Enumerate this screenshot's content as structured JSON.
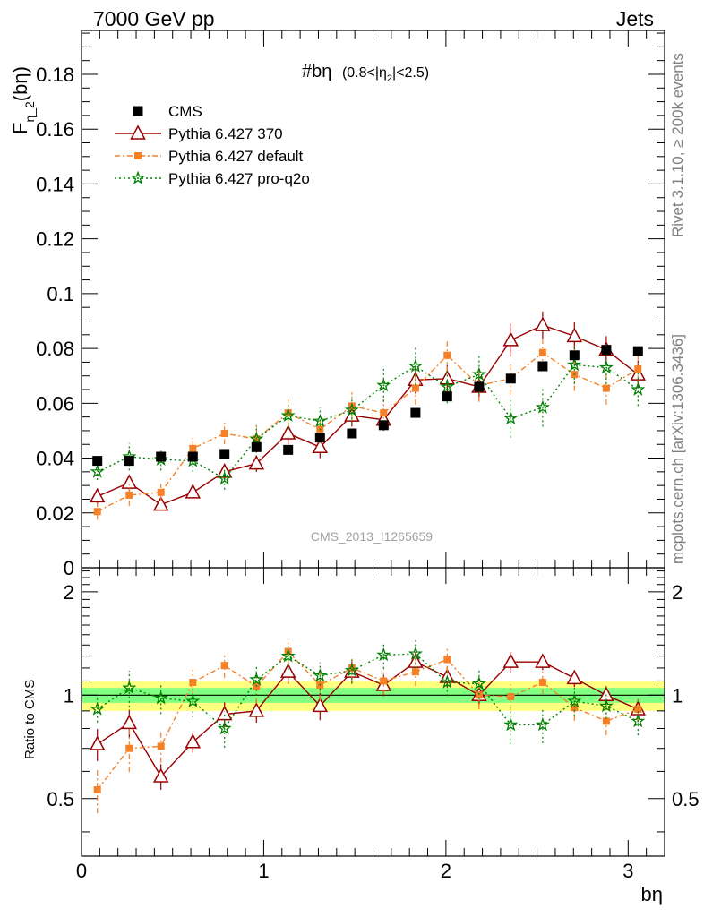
{
  "header": {
    "left": "7000 GeV pp",
    "right": "Jets"
  },
  "side_text": {
    "rivet": "Rivet 3.1.10, ≥ 200k events",
    "mcplots": "mcplots.cern.ch [arXiv:1306.3436]"
  },
  "watermark": "CMS_2013_I1265659",
  "top_panel": {
    "title_main": "#bη",
    "title_sub": "(0.8<|η",
    "title_sub2": "2",
    "title_sub3": "|<2.5)",
    "ylabel_main": "F",
    "ylabel_sub": "η_2",
    "ylabel_tail": "(bη)"
  },
  "bottom_panel": {
    "ylabel": "Ratio to CMS"
  },
  "colors": {
    "cms": "#000000",
    "p370": "#990000",
    "pdefault": "#f58025",
    "pq2o": "#008000",
    "band_inner": "#80ff80",
    "band_outer": "#ffff80"
  },
  "chart_data": [
    {
      "type": "scatter",
      "xlabel": "bη",
      "ylabel": "F_η_2(bη)",
      "xlim": [
        0,
        3.2
      ],
      "ylim": [
        0,
        0.196
      ],
      "yticks": [
        "0",
        "0.02",
        "0.04",
        "0.06",
        "0.08",
        "0.1",
        "0.12",
        "0.14",
        "0.16",
        "0.18"
      ],
      "ytick_values": [
        0,
        0.02,
        0.04,
        0.06,
        0.08,
        0.1,
        0.12,
        0.14,
        0.16,
        0.18
      ],
      "x": [
        0.087,
        0.262,
        0.436,
        0.611,
        0.785,
        0.96,
        1.134,
        1.309,
        1.484,
        1.658,
        1.833,
        2.007,
        2.182,
        2.356,
        2.531,
        2.705,
        2.88,
        3.054
      ],
      "legend_position": "top-left",
      "series": [
        {
          "name": "CMS",
          "marker": "square",
          "values": [
            0.039,
            0.039,
            0.0405,
            0.0405,
            0.0415,
            0.044,
            0.043,
            0.0475,
            0.049,
            0.052,
            0.0565,
            0.0625,
            0.066,
            0.069,
            0.0735,
            0.0775,
            0.0795,
            0.079
          ],
          "err": [
            0.0005,
            0.0005,
            0.0005,
            0.0005,
            0.0005,
            0.0005,
            0.0005,
            0.0005,
            0.0005,
            0.0005,
            0.0005,
            0.0005,
            0.0005,
            0.0005,
            0.0005,
            0.0005,
            0.0005,
            0.0005
          ]
        },
        {
          "name": "Pythia 6.427 370",
          "marker": "triangle",
          "values": [
            0.026,
            0.031,
            0.023,
            0.0275,
            0.035,
            0.038,
            0.049,
            0.044,
            0.0555,
            0.054,
            0.0685,
            0.069,
            0.066,
            0.083,
            0.0885,
            0.0845,
            0.0795,
            0.0705
          ],
          "err": [
            0.003,
            0.003,
            0.002,
            0.002,
            0.003,
            0.003,
            0.004,
            0.004,
            0.004,
            0.004,
            0.005,
            0.005,
            0.005,
            0.006,
            0.005,
            0.005,
            0.005,
            0.005
          ]
        },
        {
          "name": "Pythia 6.427 default",
          "marker": "small-square",
          "values": [
            0.0205,
            0.0265,
            0.0275,
            0.0435,
            0.049,
            0.047,
            0.0565,
            0.0505,
            0.059,
            0.0565,
            0.0655,
            0.0775,
            0.0665,
            0.069,
            0.0785,
            0.0705,
            0.0655,
            0.0725
          ],
          "err": [
            0.003,
            0.004,
            0.003,
            0.004,
            0.004,
            0.005,
            0.005,
            0.005,
            0.005,
            0.005,
            0.006,
            0.006,
            0.006,
            0.006,
            0.006,
            0.006,
            0.006,
            0.006
          ]
        },
        {
          "name": "Pythia 6.427 pro-q2o",
          "marker": "star",
          "values": [
            0.035,
            0.0405,
            0.0395,
            0.039,
            0.0325,
            0.047,
            0.0555,
            0.0535,
            0.0575,
            0.0665,
            0.0735,
            0.066,
            0.0705,
            0.0545,
            0.0585,
            0.074,
            0.073,
            0.065
          ],
          "err": [
            0.003,
            0.005,
            0.004,
            0.004,
            0.004,
            0.005,
            0.005,
            0.005,
            0.005,
            0.006,
            0.007,
            0.006,
            0.007,
            0.007,
            0.007,
            0.007,
            0.006,
            0.006
          ]
        }
      ]
    },
    {
      "type": "scatter",
      "ylabel": "Ratio to CMS",
      "xlabel": "bη",
      "xlim": [
        0,
        3.2
      ],
      "ylim": [
        0.34,
        2.35
      ],
      "yscale": "log",
      "yticks": [
        "0.5",
        "1",
        "2"
      ],
      "ytick_values": [
        0.5,
        1,
        2
      ],
      "xticks": [
        "0",
        "1",
        "2",
        "3"
      ],
      "xtick_values": [
        0,
        1,
        2,
        3
      ],
      "x": [
        0.087,
        0.262,
        0.436,
        0.611,
        0.785,
        0.96,
        1.134,
        1.309,
        1.484,
        1.658,
        1.833,
        2.007,
        2.182,
        2.356,
        2.531,
        2.705,
        2.88,
        3.054
      ],
      "band_inner": [
        0.95,
        1.05
      ],
      "band_outer": [
        0.9,
        1.1
      ],
      "series": [
        {
          "name": "Pythia 6.427 370",
          "values": [
            0.72,
            0.83,
            0.58,
            0.73,
            0.88,
            0.9,
            1.17,
            0.93,
            1.17,
            1.07,
            1.25,
            1.13,
            1.0,
            1.25,
            1.25,
            1.12,
            1.0,
            0.91
          ]
        },
        {
          "name": "Pythia 6.427 default",
          "values": [
            0.53,
            0.7,
            0.71,
            1.09,
            1.22,
            1.06,
            1.34,
            1.07,
            1.2,
            1.1,
            1.17,
            1.27,
            1.0,
            0.99,
            1.09,
            0.92,
            0.84,
            0.91
          ]
        },
        {
          "name": "Pythia 6.427 pro-q2o",
          "values": [
            0.91,
            1.05,
            0.98,
            0.96,
            0.8,
            1.11,
            1.3,
            1.14,
            1.18,
            1.31,
            1.32,
            1.09,
            1.08,
            0.82,
            0.82,
            0.96,
            0.93,
            0.84
          ]
        }
      ]
    }
  ]
}
